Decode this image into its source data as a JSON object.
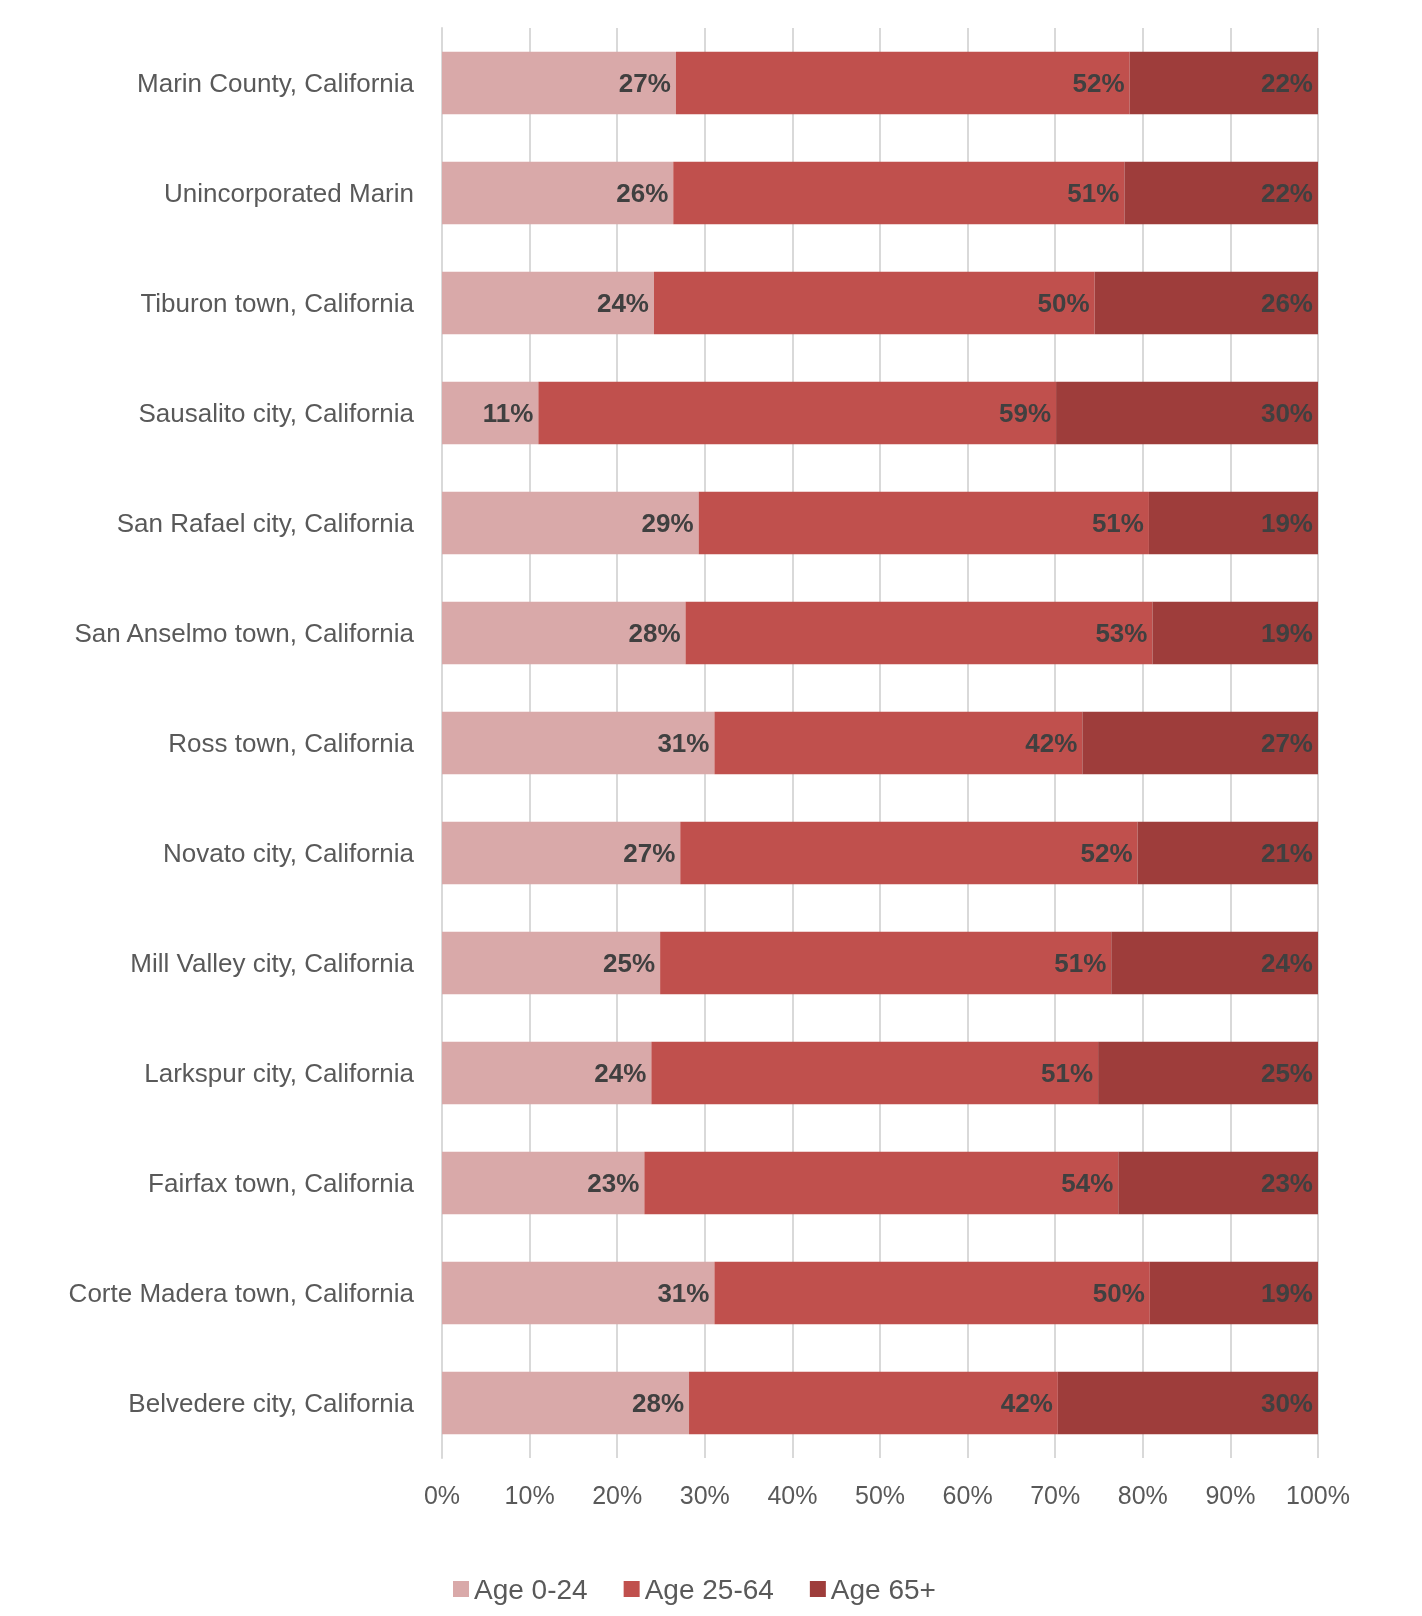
{
  "chart_data": {
    "type": "bar",
    "orientation": "horizontal",
    "stacked": true,
    "categories": [
      "Marin County, California",
      "Unincorporated Marin",
      "Tiburon town, California",
      "Sausalito city, California",
      "San Rafael city, California",
      "San Anselmo town, California",
      "Ross town, California",
      "Novato city, California",
      "Mill Valley city, California",
      "Larkspur city, California",
      "Fairfax town, California",
      "Corte Madera town, California",
      "Belvedere city, California"
    ],
    "series": [
      {
        "name": "Age 0-24",
        "color": "#d9a9a9",
        "values": [
          26.7,
          26.4,
          24.2,
          11.0,
          29.3,
          27.8,
          31.1,
          27.2,
          24.9,
          23.9,
          23.1,
          31.1,
          28.2
        ],
        "value_labels": [
          "27%",
          "26%",
          "24%",
          "11%",
          "29%",
          "28%",
          "31%",
          "27%",
          "25%",
          "24%",
          "23%",
          "31%",
          "28%"
        ]
      },
      {
        "name": "Age 25-64",
        "color": "#c0504d",
        "values": [
          51.8,
          51.5,
          50.3,
          59.1,
          51.4,
          53.3,
          42.0,
          52.2,
          51.5,
          51.0,
          54.1,
          49.7,
          42.1
        ],
        "value_labels": [
          "52%",
          "51%",
          "50%",
          "59%",
          "51%",
          "53%",
          "42%",
          "52%",
          "51%",
          "51%",
          "54%",
          "50%",
          "42%"
        ]
      },
      {
        "name": "Age 65+",
        "color": "#9e3d3b",
        "values": [
          21.5,
          22.1,
          25.5,
          29.9,
          19.3,
          18.9,
          26.9,
          20.6,
          23.6,
          25.1,
          22.8,
          19.2,
          29.7
        ],
        "value_labels": [
          "22%",
          "22%",
          "26%",
          "30%",
          "19%",
          "19%",
          "27%",
          "21%",
          "24%",
          "25%",
          "23%",
          "19%",
          "30%"
        ]
      }
    ],
    "xlim": [
      0,
      100
    ],
    "xticks": [
      {
        "value": 0,
        "label": "0%"
      },
      {
        "value": 10,
        "label": "10%"
      },
      {
        "value": 20,
        "label": "20%"
      },
      {
        "value": 30,
        "label": "30%"
      },
      {
        "value": 40,
        "label": "40%"
      },
      {
        "value": 50,
        "label": "50%"
      },
      {
        "value": 60,
        "label": "60%"
      },
      {
        "value": 70,
        "label": "70%"
      },
      {
        "value": 80,
        "label": "80%"
      },
      {
        "value": 90,
        "label": "90%"
      },
      {
        "value": 100,
        "label": "100%"
      }
    ],
    "grid": "x",
    "legend": "bottom"
  }
}
